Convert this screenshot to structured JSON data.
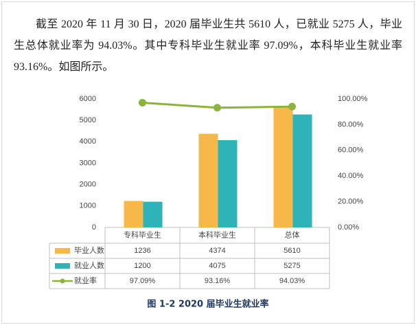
{
  "paragraph": "截至 2020 年 11 月 30 日，2020 届毕业生共 5610 人，已就业 5275 人，毕业生总体就业率为 94.03%。其中专科毕业生就业率 97.09%，本科毕业生就业率 93.16%。如图所示。",
  "chart_data": {
    "type": "combo",
    "title": "图 1-2 2020 届毕业生就业率",
    "categories": [
      "专科毕业生",
      "本科毕业生",
      "总体"
    ],
    "series": [
      {
        "name": "毕业人数",
        "type": "bar",
        "color": "#f7b84a",
        "values": [
          1236,
          4374,
          5610
        ]
      },
      {
        "name": "就业人数",
        "type": "bar",
        "color": "#2fb3b9",
        "values": [
          1200,
          4075,
          5275
        ]
      },
      {
        "name": "就业率",
        "type": "line",
        "axis": "y2",
        "color": "#8cb43c",
        "values": [
          97.09,
          93.16,
          94.03
        ],
        "value_labels": [
          "97.09%",
          "93.16%",
          "94.03%"
        ]
      }
    ],
    "ylim": [
      0,
      6000
    ],
    "yticks": [
      0,
      1000,
      2000,
      3000,
      4000,
      5000,
      6000
    ],
    "y2lim": [
      0,
      100
    ],
    "y2ticks": [
      {
        "value": 0,
        "label": "0.00%"
      },
      {
        "value": 20,
        "label": "20.00%"
      },
      {
        "value": 40,
        "label": "40.00%"
      },
      {
        "value": 60,
        "label": "60.00%"
      },
      {
        "value": 80,
        "label": "80.00%"
      },
      {
        "value": 100,
        "label": "100.00%"
      }
    ]
  }
}
